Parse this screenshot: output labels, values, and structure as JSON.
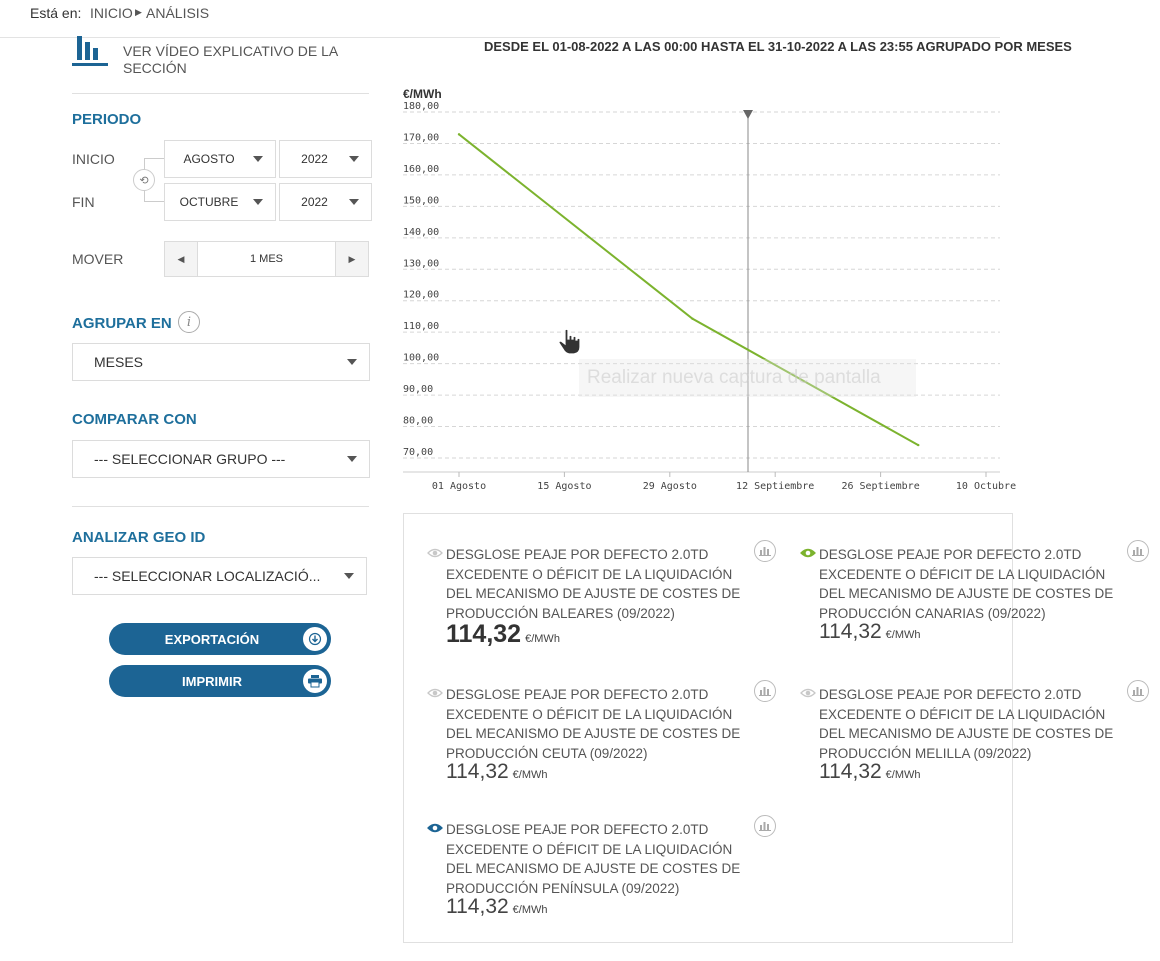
{
  "breadcrumb": {
    "label": "Está en:",
    "items": [
      "INICIO",
      "ANÁLISIS"
    ]
  },
  "help": {
    "text": "VER VÍDEO EXPLICATIVO DE LA SECCIÓN",
    "icon": "bar-chart-icon"
  },
  "periodo": {
    "title": "PERIODO",
    "inicio_label": "INICIO",
    "fin_label": "FIN",
    "inicio_month": "AGOSTO",
    "inicio_year": "2022",
    "fin_month": "OCTUBRE",
    "fin_year": "2022",
    "mover_label": "MOVER",
    "mover_value": "1 MES"
  },
  "agrupar": {
    "title": "AGRUPAR EN",
    "value": "MESES"
  },
  "comparar": {
    "title": "COMPARAR CON",
    "value": "--- SELECCIONAR GRUPO ---"
  },
  "geo": {
    "title": "ANALIZAR GEO ID",
    "value": "--- SELECCIONAR LOCALIZACIÓ..."
  },
  "buttons": {
    "export": "EXPORTACIÓN",
    "print": "IMPRIMIR"
  },
  "chart_header": "DESDE EL 01-08-2022 A LAS 00:00 HASTA EL 31-10-2022 A LAS 23:55 AGRUPADO POR MESES",
  "overlay_text": "Realizar nueva captura de pantalla",
  "chart_data": {
    "type": "line",
    "ylabel": "€/MWh",
    "ylim": [
      65,
      182
    ],
    "y_ticks": [
      "180,00",
      "170,00",
      "160,00",
      "150,00",
      "140,00",
      "130,00",
      "120,00",
      "110,00",
      "100,00",
      "90,00",
      "80,00",
      "70,00"
    ],
    "x_ticks": [
      "01 Agosto",
      "15 Agosto",
      "29 Agosto",
      "12 Septiembre",
      "26 Septiembre",
      "10 Octubre"
    ],
    "cursor_at": "12 Septiembre",
    "grid": true,
    "series": [
      {
        "color": "#7cb32e",
        "x": [
          "2022-08-01",
          "2022-09-01",
          "2022-10-01"
        ],
        "values": [
          172.9,
          114.3,
          74.1
        ]
      }
    ]
  },
  "colors": {
    "accent": "#1e6f9c",
    "button": "#1c6494",
    "series": "#7cb32e",
    "eye_active_green": "#7cb32e",
    "eye_active_blue": "#1c6494"
  },
  "cards": [
    {
      "title": "DESGLOSE PEAJE POR DEFECTO 2.0TD\nEXCEDENTE O DÉFICIT DE LA LIQUIDACIÓN\nDEL MECANISMO DE AJUSTE DE COSTES DE\nPRODUCCIÓN BALEARES (09/2022)",
      "value": "114,32",
      "unit": "€/MWh",
      "eye": "inactive"
    },
    {
      "title": "DESGLOSE PEAJE POR DEFECTO 2.0TD\nEXCEDENTE O DÉFICIT DE LA LIQUIDACIÓN\nDEL MECANISMO DE AJUSTE DE COSTES DE\nPRODUCCIÓN CANARIAS (09/2022)",
      "value": "114,32",
      "unit": "€/MWh",
      "eye": "active-green"
    },
    {
      "title": "DESGLOSE PEAJE POR DEFECTO 2.0TD\nEXCEDENTE O DÉFICIT DE LA LIQUIDACIÓN\nDEL MECANISMO DE AJUSTE DE COSTES DE\nPRODUCCIÓN CEUTA (09/2022)",
      "value": "114,32",
      "unit": "€/MWh",
      "eye": "inactive"
    },
    {
      "title": "DESGLOSE PEAJE POR DEFECTO 2.0TD\nEXCEDENTE O DÉFICIT DE LA LIQUIDACIÓN\nDEL MECANISMO DE AJUSTE DE COSTES DE\nPRODUCCIÓN MELILLA (09/2022)",
      "value": "114,32",
      "unit": "€/MWh",
      "eye": "inactive"
    },
    {
      "title": "DESGLOSE PEAJE POR DEFECTO 2.0TD\nEXCEDENTE O DÉFICIT DE LA LIQUIDACIÓN\nDEL MECANISMO DE AJUSTE DE COSTES DE\nPRODUCCIÓN PENÍNSULA (09/2022)",
      "value": "114,32",
      "unit": "€/MWh",
      "eye": "active-blue"
    }
  ]
}
